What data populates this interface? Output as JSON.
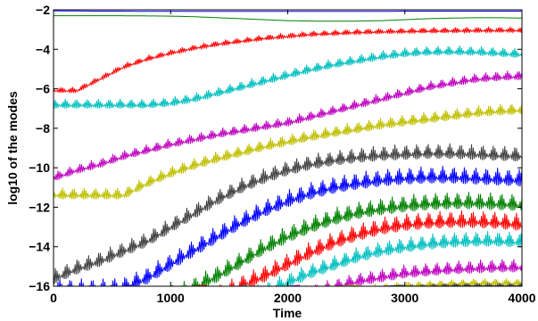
{
  "chart_data": {
    "type": "line",
    "xlabel": "Time",
    "ylabel": "log10 of the modes",
    "xlim": [
      0,
      4000
    ],
    "ylim": [
      -16,
      -2
    ],
    "xticks": [
      0,
      1000,
      2000,
      3000,
      4000
    ],
    "yticks": [
      -16,
      -14,
      -12,
      -10,
      -8,
      -6,
      -4,
      -2
    ],
    "grid": false,
    "legend": "none",
    "x": [
      0,
      200,
      400,
      600,
      800,
      1000,
      1200,
      1400,
      1600,
      1800,
      2000,
      2200,
      2400,
      2600,
      2800,
      3000,
      3200,
      3400,
      3600,
      3800,
      4000
    ],
    "series": [
      {
        "color": "#0000ff",
        "oscillation": 0,
        "values": [
          -2.05,
          -2.06,
          -2.07,
          -2.07,
          -2.08,
          -2.08,
          -2.08,
          -2.08,
          -2.08,
          -2.08,
          -2.08,
          -2.08,
          -2.08,
          -2.08,
          -2.08,
          -2.07,
          -2.07,
          -2.07,
          -2.07,
          -2.07,
          -2.07
        ]
      },
      {
        "color": "#008000",
        "oscillation": 0,
        "values": [
          -2.3,
          -2.3,
          -2.3,
          -2.3,
          -2.31,
          -2.32,
          -2.35,
          -2.4,
          -2.45,
          -2.5,
          -2.55,
          -2.57,
          -2.58,
          -2.57,
          -2.55,
          -2.5,
          -2.45,
          -2.42,
          -2.4,
          -2.4,
          -2.42
        ]
      },
      {
        "color": "#ff0000",
        "oscillation": 0.3,
        "values": [
          -5.9,
          -5.9,
          -5.3,
          -4.7,
          -4.3,
          -4.0,
          -3.75,
          -3.55,
          -3.4,
          -3.25,
          -3.15,
          -3.05,
          -3.0,
          -2.95,
          -2.92,
          -2.9,
          -2.88,
          -2.87,
          -2.86,
          -2.85,
          -2.85
        ]
      },
      {
        "color": "#00bfbf",
        "oscillation": 0.5,
        "values": [
          -6.5,
          -6.5,
          -6.5,
          -6.5,
          -6.5,
          -6.4,
          -6.2,
          -5.9,
          -5.6,
          -5.3,
          -5.0,
          -4.7,
          -4.45,
          -4.25,
          -4.05,
          -3.9,
          -3.82,
          -3.8,
          -3.82,
          -3.88,
          -3.95
        ]
      },
      {
        "color": "#bf00bf",
        "oscillation": 0.5,
        "values": [
          -10.2,
          -9.8,
          -9.5,
          -9.1,
          -8.8,
          -8.5,
          -8.25,
          -8.0,
          -7.8,
          -7.6,
          -7.4,
          -7.1,
          -6.8,
          -6.5,
          -6.2,
          -5.9,
          -5.6,
          -5.4,
          -5.2,
          -5.1,
          -5.05
        ]
      },
      {
        "color": "#bfbf00",
        "oscillation": 0.6,
        "values": [
          -11.0,
          -11.0,
          -11.0,
          -11.0,
          -10.4,
          -9.9,
          -9.5,
          -9.15,
          -8.85,
          -8.55,
          -8.3,
          -8.05,
          -7.85,
          -7.65,
          -7.45,
          -7.3,
          -7.15,
          -7.0,
          -6.85,
          -6.75,
          -6.7
        ]
      },
      {
        "color": "#404040",
        "oscillation": 0.8,
        "values": [
          -15.1,
          -14.6,
          -14.2,
          -13.7,
          -13.2,
          -12.5,
          -11.8,
          -11.1,
          -10.5,
          -10.0,
          -9.6,
          -9.3,
          -9.1,
          -8.95,
          -8.85,
          -8.8,
          -8.75,
          -8.75,
          -8.8,
          -8.85,
          -8.9
        ]
      },
      {
        "color": "#0000ff",
        "oscillation": 0.9,
        "values": [
          -15.6,
          -15.6,
          -15.6,
          -15.5,
          -15.0,
          -14.3,
          -13.6,
          -12.9,
          -12.2,
          -11.6,
          -11.1,
          -10.7,
          -10.4,
          -10.2,
          -10.05,
          -9.95,
          -9.9,
          -9.9,
          -9.95,
          -10.0,
          -10.05
        ]
      },
      {
        "color": "#008000",
        "oscillation": 0.9,
        "values": [
          -16.0,
          -16.0,
          -16.0,
          -16.0,
          -16.0,
          -16.0,
          -15.5,
          -14.9,
          -14.2,
          -13.5,
          -12.9,
          -12.4,
          -12.0,
          -11.7,
          -11.5,
          -11.35,
          -11.25,
          -11.2,
          -11.2,
          -11.25,
          -11.3
        ]
      },
      {
        "color": "#ff0000",
        "oscillation": 0.9,
        "values": [
          -16.0,
          -16.0,
          -16.0,
          -16.0,
          -16.0,
          -16.0,
          -16.0,
          -15.9,
          -15.4,
          -14.9,
          -14.3,
          -13.7,
          -13.2,
          -12.8,
          -12.5,
          -12.3,
          -12.2,
          -12.15,
          -12.15,
          -12.2,
          -12.3
        ]
      },
      {
        "color": "#00bfbf",
        "oscillation": 0.8,
        "values": [
          -16.0,
          -16.0,
          -16.0,
          -16.0,
          -16.0,
          -16.0,
          -16.0,
          -16.0,
          -16.0,
          -15.8,
          -15.3,
          -14.8,
          -14.4,
          -14.0,
          -13.7,
          -13.5,
          -13.35,
          -13.25,
          -13.2,
          -13.2,
          -13.25
        ]
      },
      {
        "color": "#bf00bf",
        "oscillation": 0.7,
        "values": [
          -16.0,
          -16.0,
          -16.0,
          -16.0,
          -16.0,
          -16.0,
          -16.0,
          -16.0,
          -16.0,
          -16.0,
          -16.0,
          -15.9,
          -15.6,
          -15.3,
          -15.1,
          -14.9,
          -14.8,
          -14.7,
          -14.65,
          -14.6,
          -14.6
        ]
      },
      {
        "color": "#bfbf00",
        "oscillation": 0.4,
        "values": [
          -16.0,
          -16.0,
          -16.0,
          -16.0,
          -16.0,
          -16.0,
          -16.0,
          -16.0,
          -16.0,
          -16.0,
          -16.0,
          -16.0,
          -16.0,
          -15.95,
          -15.85,
          -15.75,
          -15.7,
          -15.65,
          -15.6,
          -15.6,
          -15.6
        ]
      },
      {
        "color": "#404040",
        "oscillation": 0.2,
        "values": [
          -16.0,
          -16.0,
          -16.0,
          -16.0,
          -16.0,
          -16.0,
          -16.0,
          -16.0,
          -16.0,
          -16.0,
          -16.0,
          -16.0,
          -16.0,
          -16.0,
          -16.0,
          -15.95,
          -15.9,
          -15.85,
          -15.85,
          -15.85,
          -15.85
        ]
      }
    ]
  }
}
